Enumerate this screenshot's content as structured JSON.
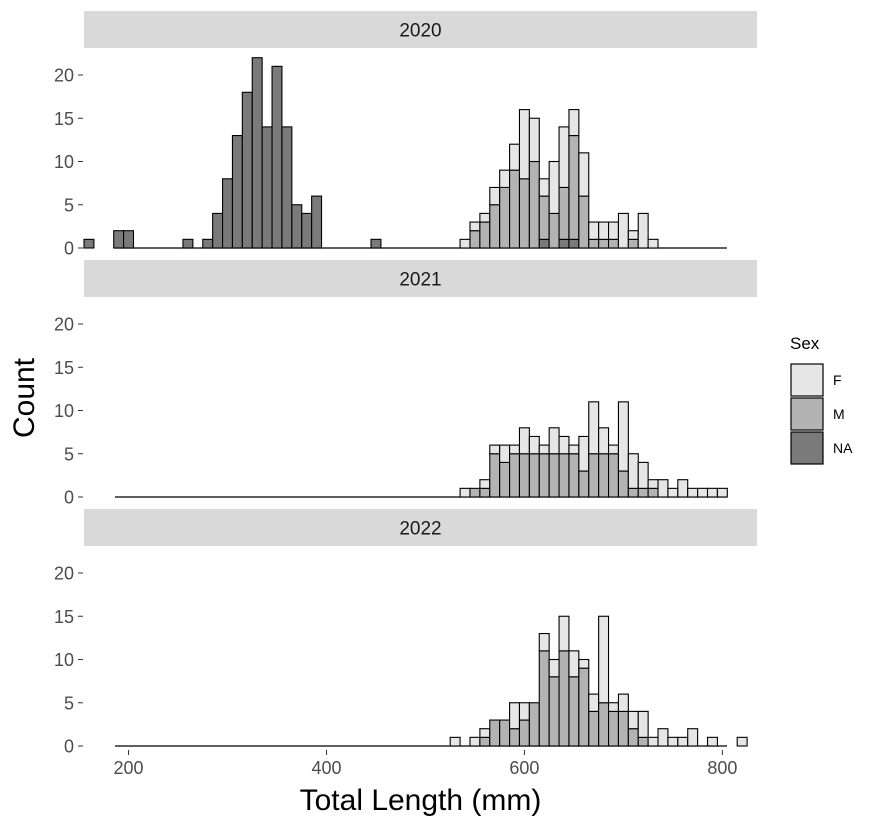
{
  "chart_data": {
    "type": "histogram",
    "xlabel": "Total Length (mm)",
    "ylabel": "Count",
    "xlim": [
      155,
      835
    ],
    "ylim": [
      0,
      22
    ],
    "x_ticks": [
      200,
      400,
      600,
      800
    ],
    "y_ticks": [
      0,
      5,
      10,
      15,
      20
    ],
    "bin_width": 10,
    "stacked": true,
    "stack_order": [
      "NA",
      "M",
      "F"
    ],
    "legend": {
      "title": "Sex",
      "position": "right",
      "entries": [
        {
          "key": "F",
          "label": "F"
        },
        {
          "key": "M",
          "label": "M"
        },
        {
          "key": "NA",
          "label": "NA"
        }
      ]
    },
    "colors": {
      "F": "#e6e6e6",
      "M": "#b3b3b3",
      "NA": "#7a7a7a",
      "outline": "#000000",
      "strip": "#d9d9d9"
    },
    "panels": [
      {
        "label": "2020",
        "bins": [
          {
            "x": 160,
            "NA": 1,
            "M": 0,
            "F": 0
          },
          {
            "x": 190,
            "NA": 2,
            "M": 0,
            "F": 0
          },
          {
            "x": 200,
            "NA": 2,
            "M": 0,
            "F": 0
          },
          {
            "x": 260,
            "NA": 1,
            "M": 0,
            "F": 0
          },
          {
            "x": 280,
            "NA": 1,
            "M": 0,
            "F": 0
          },
          {
            "x": 290,
            "NA": 4,
            "M": 0,
            "F": 0
          },
          {
            "x": 300,
            "NA": 8,
            "M": 0,
            "F": 0
          },
          {
            "x": 310,
            "NA": 13,
            "M": 0,
            "F": 0
          },
          {
            "x": 320,
            "NA": 18,
            "M": 0,
            "F": 0
          },
          {
            "x": 330,
            "NA": 22,
            "M": 0,
            "F": 0
          },
          {
            "x": 340,
            "NA": 14,
            "M": 0,
            "F": 0
          },
          {
            "x": 350,
            "NA": 21,
            "M": 0,
            "F": 0
          },
          {
            "x": 360,
            "NA": 14,
            "M": 0,
            "F": 0
          },
          {
            "x": 370,
            "NA": 5,
            "M": 0,
            "F": 0
          },
          {
            "x": 380,
            "NA": 4,
            "M": 0,
            "F": 0
          },
          {
            "x": 390,
            "NA": 6,
            "M": 0,
            "F": 0
          },
          {
            "x": 450,
            "NA": 1,
            "M": 0,
            "F": 0
          },
          {
            "x": 540,
            "NA": 0,
            "M": 0,
            "F": 1
          },
          {
            "x": 550,
            "NA": 0,
            "M": 2,
            "F": 1
          },
          {
            "x": 560,
            "NA": 0,
            "M": 3,
            "F": 1
          },
          {
            "x": 570,
            "NA": 0,
            "M": 5,
            "F": 2
          },
          {
            "x": 580,
            "NA": 0,
            "M": 7,
            "F": 2
          },
          {
            "x": 590,
            "NA": 0,
            "M": 9,
            "F": 3
          },
          {
            "x": 600,
            "NA": 0,
            "M": 8,
            "F": 8
          },
          {
            "x": 610,
            "NA": 0,
            "M": 10,
            "F": 5
          },
          {
            "x": 620,
            "NA": 1,
            "M": 5,
            "F": 2
          },
          {
            "x": 630,
            "NA": 0,
            "M": 4,
            "F": 6
          },
          {
            "x": 640,
            "NA": 1,
            "M": 6,
            "F": 7
          },
          {
            "x": 650,
            "NA": 1,
            "M": 12,
            "F": 3
          },
          {
            "x": 660,
            "NA": 0,
            "M": 6,
            "F": 5
          },
          {
            "x": 670,
            "NA": 0,
            "M": 1,
            "F": 2
          },
          {
            "x": 680,
            "NA": 0,
            "M": 1,
            "F": 2
          },
          {
            "x": 690,
            "NA": 0,
            "M": 1,
            "F": 2
          },
          {
            "x": 700,
            "NA": 0,
            "M": 0,
            "F": 4
          },
          {
            "x": 710,
            "NA": 0,
            "M": 1,
            "F": 1
          },
          {
            "x": 720,
            "NA": 0,
            "M": 0,
            "F": 4
          },
          {
            "x": 730,
            "NA": 0,
            "M": 0,
            "F": 1
          }
        ]
      },
      {
        "label": "2021",
        "bins": [
          {
            "x": 540,
            "NA": 0,
            "M": 0,
            "F": 1
          },
          {
            "x": 550,
            "NA": 0,
            "M": 1,
            "F": 0
          },
          {
            "x": 560,
            "NA": 0,
            "M": 1,
            "F": 1
          },
          {
            "x": 570,
            "NA": 0,
            "M": 5,
            "F": 1
          },
          {
            "x": 580,
            "NA": 0,
            "M": 4,
            "F": 2
          },
          {
            "x": 590,
            "NA": 0,
            "M": 5,
            "F": 1
          },
          {
            "x": 600,
            "NA": 0,
            "M": 5,
            "F": 3
          },
          {
            "x": 610,
            "NA": 0,
            "M": 5,
            "F": 2
          },
          {
            "x": 620,
            "NA": 0,
            "M": 5,
            "F": 1
          },
          {
            "x": 630,
            "NA": 0,
            "M": 5,
            "F": 3
          },
          {
            "x": 640,
            "NA": 0,
            "M": 5,
            "F": 2
          },
          {
            "x": 650,
            "NA": 0,
            "M": 5,
            "F": 1
          },
          {
            "x": 660,
            "NA": 0,
            "M": 3,
            "F": 4
          },
          {
            "x": 670,
            "NA": 0,
            "M": 5,
            "F": 6
          },
          {
            "x": 680,
            "NA": 0,
            "M": 5,
            "F": 3
          },
          {
            "x": 690,
            "NA": 0,
            "M": 5,
            "F": 1
          },
          {
            "x": 700,
            "NA": 0,
            "M": 3,
            "F": 8
          },
          {
            "x": 710,
            "NA": 0,
            "M": 1,
            "F": 4
          },
          {
            "x": 720,
            "NA": 0,
            "M": 1,
            "F": 3
          },
          {
            "x": 730,
            "NA": 0,
            "M": 1,
            "F": 1
          },
          {
            "x": 740,
            "NA": 0,
            "M": 0,
            "F": 2
          },
          {
            "x": 750,
            "NA": 0,
            "M": 0,
            "F": 1
          },
          {
            "x": 760,
            "NA": 0,
            "M": 0,
            "F": 2
          },
          {
            "x": 770,
            "NA": 0,
            "M": 0,
            "F": 1
          },
          {
            "x": 780,
            "NA": 0,
            "M": 0,
            "F": 1
          },
          {
            "x": 790,
            "NA": 0,
            "M": 0,
            "F": 1
          },
          {
            "x": 800,
            "NA": 0,
            "M": 0,
            "F": 1
          }
        ]
      },
      {
        "label": "2022",
        "bins": [
          {
            "x": 530,
            "NA": 0,
            "M": 0,
            "F": 1
          },
          {
            "x": 550,
            "NA": 0,
            "M": 0,
            "F": 1
          },
          {
            "x": 560,
            "NA": 0,
            "M": 1,
            "F": 1
          },
          {
            "x": 570,
            "NA": 0,
            "M": 3,
            "F": 0
          },
          {
            "x": 580,
            "NA": 0,
            "M": 3,
            "F": 0
          },
          {
            "x": 590,
            "NA": 0,
            "M": 2,
            "F": 3
          },
          {
            "x": 600,
            "NA": 0,
            "M": 3,
            "F": 2
          },
          {
            "x": 610,
            "NA": 0,
            "M": 5,
            "F": 0
          },
          {
            "x": 620,
            "NA": 0,
            "M": 11,
            "F": 2
          },
          {
            "x": 630,
            "NA": 0,
            "M": 8,
            "F": 2
          },
          {
            "x": 640,
            "NA": 0,
            "M": 11,
            "F": 4
          },
          {
            "x": 650,
            "NA": 0,
            "M": 8,
            "F": 3
          },
          {
            "x": 660,
            "NA": 0,
            "M": 9,
            "F": 1
          },
          {
            "x": 670,
            "NA": 0,
            "M": 4,
            "F": 2
          },
          {
            "x": 680,
            "NA": 0,
            "M": 5,
            "F": 10
          },
          {
            "x": 690,
            "NA": 0,
            "M": 4,
            "F": 1
          },
          {
            "x": 700,
            "NA": 0,
            "M": 4,
            "F": 2
          },
          {
            "x": 710,
            "NA": 0,
            "M": 2,
            "F": 2
          },
          {
            "x": 720,
            "NA": 0,
            "M": 1,
            "F": 3
          },
          {
            "x": 730,
            "NA": 0,
            "M": 0,
            "F": 1
          },
          {
            "x": 740,
            "NA": 0,
            "M": 0,
            "F": 2
          },
          {
            "x": 750,
            "NA": 0,
            "M": 0,
            "F": 1
          },
          {
            "x": 760,
            "NA": 0,
            "M": 0,
            "F": 1
          },
          {
            "x": 770,
            "NA": 0,
            "M": 0,
            "F": 2
          },
          {
            "x": 790,
            "NA": 0,
            "M": 0,
            "F": 1
          },
          {
            "x": 820,
            "NA": 0,
            "M": 0,
            "F": 1
          }
        ]
      }
    ]
  }
}
